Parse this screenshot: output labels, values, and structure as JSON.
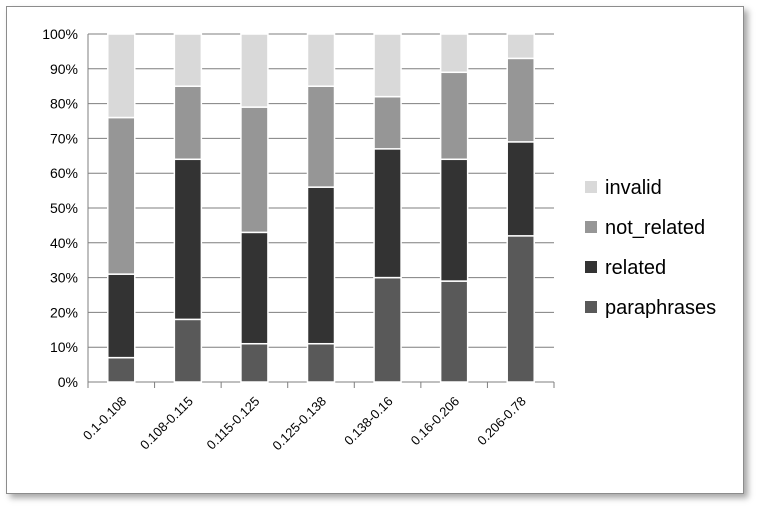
{
  "chart_data": {
    "type": "bar",
    "stacked": true,
    "percent": true,
    "categories": [
      "0.1-0.108",
      "0.108-0.115",
      "0.115-0.125",
      "0.125-0.138",
      "0.138-0.16",
      "0.16-0.206",
      "0.206-0.78"
    ],
    "series": [
      {
        "name": "paraphrases",
        "color": "#595959",
        "values": [
          7,
          18,
          11,
          11,
          30,
          29,
          42
        ]
      },
      {
        "name": "related",
        "color": "#333333",
        "values": [
          24,
          46,
          32,
          45,
          37,
          35,
          27
        ]
      },
      {
        "name": "not_related",
        "color": "#969696",
        "values": [
          45,
          21,
          36,
          29,
          15,
          25,
          24
        ]
      },
      {
        "name": "invalid",
        "color": "#d9d9d9",
        "values": [
          24,
          15,
          21,
          15,
          18,
          11,
          7
        ]
      }
    ],
    "y_ticks": [
      "0%",
      "10%",
      "20%",
      "30%",
      "40%",
      "50%",
      "60%",
      "70%",
      "80%",
      "90%",
      "100%"
    ],
    "ylim": [
      0,
      100
    ],
    "grid": true,
    "legend_position": "right",
    "legend_order": [
      "invalid",
      "not_related",
      "related",
      "paraphrases"
    ]
  }
}
